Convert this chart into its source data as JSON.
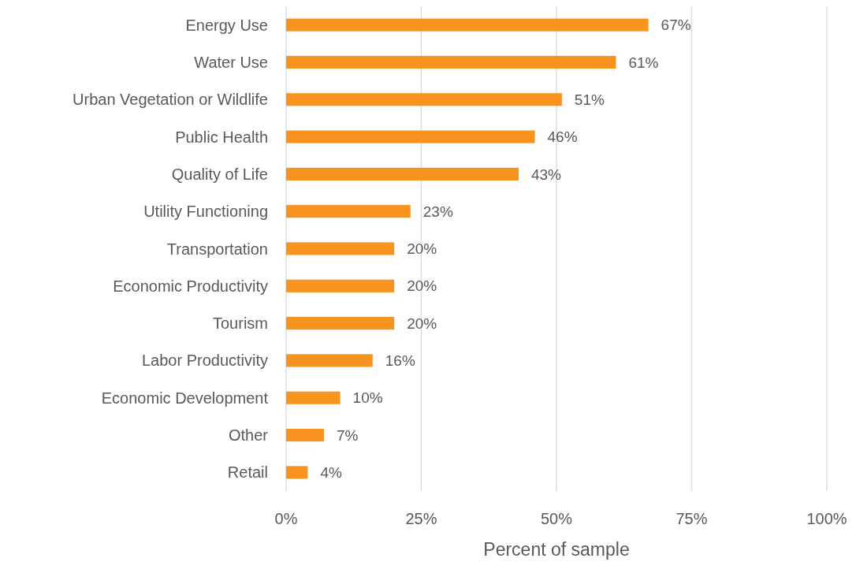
{
  "chart_data": {
    "type": "bar",
    "orientation": "horizontal",
    "categories": [
      "Energy Use",
      "Water Use",
      "Urban Vegetation or Wildlife",
      "Public Health",
      "Quality of Life",
      "Utility Functioning",
      "Transportation",
      "Economic Productivity",
      "Tourism",
      "Labor Productivity",
      "Economic Development",
      "Other",
      "Retail"
    ],
    "values": [
      67,
      61,
      51,
      46,
      43,
      23,
      20,
      20,
      20,
      16,
      10,
      7,
      4
    ],
    "value_labels": [
      "67%",
      "61%",
      "51%",
      "46%",
      "43%",
      "23%",
      "20%",
      "20%",
      "20%",
      "16%",
      "10%",
      "7%",
      "4%"
    ],
    "color": "#f7931e",
    "xlim": [
      0,
      100
    ],
    "xticks": [
      {
        "value": 0,
        "label": "0%"
      },
      {
        "value": 25,
        "label": "25%"
      },
      {
        "value": 50,
        "label": "50%"
      },
      {
        "value": 75,
        "label": "75%"
      },
      {
        "value": 100,
        "label": "100%"
      }
    ],
    "grid": "x",
    "xlabel": "Percent of sample"
  }
}
